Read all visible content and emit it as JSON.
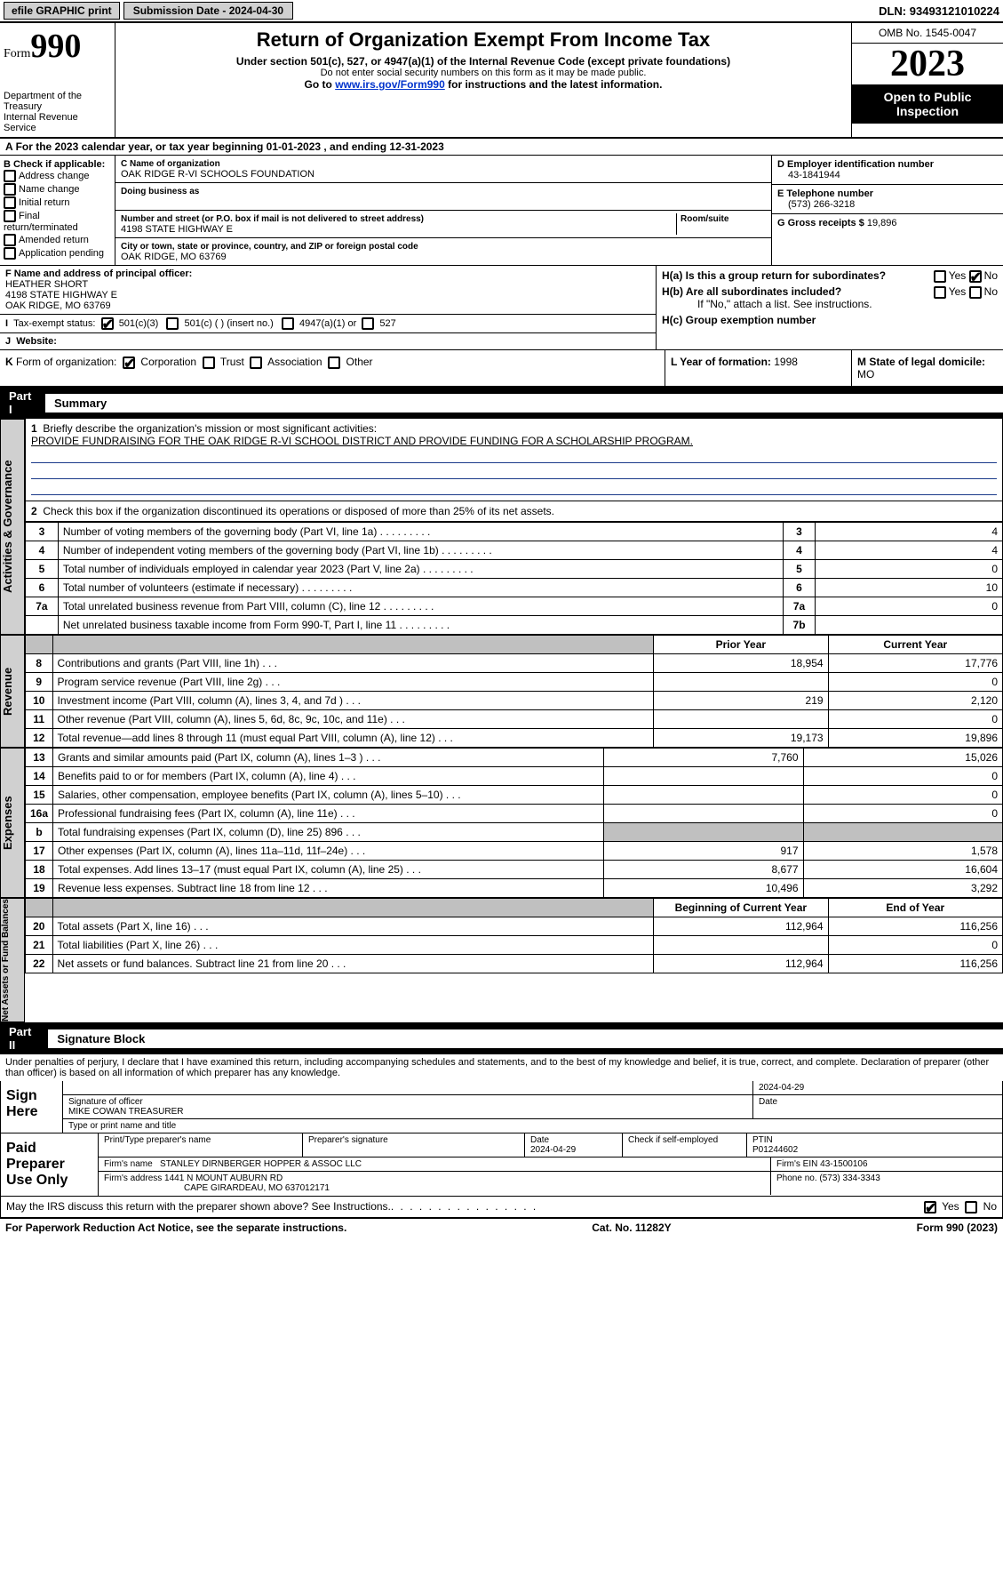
{
  "topbar": {
    "efile": "efile GRAPHIC print",
    "submission_label": "Submission Date - ",
    "submission_date": "2024-04-30",
    "dln_label": "DLN: ",
    "dln": "93493121010224"
  },
  "header": {
    "form_word": "Form",
    "form_number": "990",
    "dept": "Department of the Treasury\nInternal Revenue Service",
    "title": "Return of Organization Exempt From Income Tax",
    "sub1": "Under section 501(c), 527, or 4947(a)(1) of the Internal Revenue Code (except private foundations)",
    "sub2": "Do not enter social security numbers on this form as it may be made public.",
    "sub3_pre": "Go to ",
    "sub3_link": "www.irs.gov/Form990",
    "sub3_post": " for instructions and the latest information.",
    "omb": "OMB No. 1545-0047",
    "year": "2023",
    "open_pub": "Open to Public Inspection"
  },
  "line_A": "For the 2023 calendar year, or tax year beginning 01-01-2023    , and ending 12-31-2023",
  "B": {
    "label": "B Check if applicable:",
    "items": [
      "Address change",
      "Name change",
      "Initial return",
      "Final return/terminated",
      "Amended return",
      "Application pending"
    ]
  },
  "C": {
    "name_lab": "C Name of organization",
    "name": "OAK RIDGE R-VI SCHOOLS FOUNDATION",
    "dba_lab": "Doing business as",
    "dba": "",
    "street_lab": "Number and street (or P.O. box if mail is not delivered to street address)",
    "street": "4198 STATE HIGHWAY E",
    "room_lab": "Room/suite",
    "city_lab": "City or town, state or province, country, and ZIP or foreign postal code",
    "city": "OAK RIDGE, MO  63769"
  },
  "D": {
    "lab": "D Employer identification number",
    "val": "43-1841944"
  },
  "E": {
    "lab": "E Telephone number",
    "val": "(573) 266-3218"
  },
  "G": {
    "lab": "G Gross receipts $ ",
    "val": "19,896"
  },
  "F": {
    "lab": "F  Name and address of principal officer:",
    "name": "HEATHER SHORT",
    "addr1": "4198 STATE HIGHWAY E",
    "addr2": "OAK RIDGE, MO  63769"
  },
  "H": {
    "a": "H(a)  Is this a group return for subordinates?",
    "b": "H(b)  Are all subordinates included?",
    "b_note": "If \"No,\" attach a list. See instructions.",
    "c": "H(c)  Group exemption number",
    "yes": "Yes",
    "no": "No"
  },
  "I": {
    "lab": "Tax-exempt status:",
    "opts": [
      "501(c)(3)",
      "501(c) (  ) (insert no.)",
      "4947(a)(1) or",
      "527"
    ]
  },
  "J": {
    "lab": "Website:",
    "val": ""
  },
  "K": {
    "lab": "Form of organization:",
    "opts": [
      "Corporation",
      "Trust",
      "Association",
      "Other"
    ]
  },
  "L": {
    "lab": "L Year of formation: ",
    "val": "1998"
  },
  "M": {
    "lab": "M State of legal domicile:",
    "val": "MO"
  },
  "partI": {
    "num": "Part I",
    "title": "Summary"
  },
  "summary": {
    "q1_lab": "Briefly describe the organization's mission or most significant activities:",
    "q1_val": "PROVIDE FUNDRAISING FOR THE OAK RIDGE R-VI SCHOOL DISTRICT AND PROVIDE FUNDING FOR A SCHOLARSHIP PROGRAM.",
    "q2": "Check this box       if the organization discontinued its operations or disposed of more than 25% of its net assets.",
    "rows_gov": [
      {
        "n": "3",
        "lab": "Number of voting members of the governing body (Part VI, line 1a)",
        "box": "3",
        "val": "4"
      },
      {
        "n": "4",
        "lab": "Number of independent voting members of the governing body (Part VI, line 1b)",
        "box": "4",
        "val": "4"
      },
      {
        "n": "5",
        "lab": "Total number of individuals employed in calendar year 2023 (Part V, line 2a)",
        "box": "5",
        "val": "0"
      },
      {
        "n": "6",
        "lab": "Total number of volunteers (estimate if necessary)",
        "box": "6",
        "val": "10"
      },
      {
        "n": "7a",
        "lab": "Total unrelated business revenue from Part VIII, column (C), line 12",
        "box": "7a",
        "val": "0"
      },
      {
        "n": "",
        "lab": "Net unrelated business taxable income from Form 990-T, Part I, line 11",
        "box": "7b",
        "val": ""
      }
    ],
    "col_prior": "Prior Year",
    "col_curr": "Current Year",
    "rows_rev": [
      {
        "n": "8",
        "lab": "Contributions and grants (Part VIII, line 1h)",
        "p": "18,954",
        "c": "17,776"
      },
      {
        "n": "9",
        "lab": "Program service revenue (Part VIII, line 2g)",
        "p": "",
        "c": "0"
      },
      {
        "n": "10",
        "lab": "Investment income (Part VIII, column (A), lines 3, 4, and 7d )",
        "p": "219",
        "c": "2,120"
      },
      {
        "n": "11",
        "lab": "Other revenue (Part VIII, column (A), lines 5, 6d, 8c, 9c, 10c, and 11e)",
        "p": "",
        "c": "0"
      },
      {
        "n": "12",
        "lab": "Total revenue—add lines 8 through 11 (must equal Part VIII, column (A), line 12)",
        "p": "19,173",
        "c": "19,896"
      }
    ],
    "rows_exp": [
      {
        "n": "13",
        "lab": "Grants and similar amounts paid (Part IX, column (A), lines 1–3 )",
        "p": "7,760",
        "c": "15,026"
      },
      {
        "n": "14",
        "lab": "Benefits paid to or for members (Part IX, column (A), line 4)",
        "p": "",
        "c": "0"
      },
      {
        "n": "15",
        "lab": "Salaries, other compensation, employee benefits (Part IX, column (A), lines 5–10)",
        "p": "",
        "c": "0"
      },
      {
        "n": "16a",
        "lab": "Professional fundraising fees (Part IX, column (A), line 11e)",
        "p": "",
        "c": "0"
      },
      {
        "n": "b",
        "lab": "Total fundraising expenses (Part IX, column (D), line 25) 896",
        "p": "shade",
        "c": "shade"
      },
      {
        "n": "17",
        "lab": "Other expenses (Part IX, column (A), lines 11a–11d, 11f–24e)",
        "p": "917",
        "c": "1,578"
      },
      {
        "n": "18",
        "lab": "Total expenses. Add lines 13–17 (must equal Part IX, column (A), line 25)",
        "p": "8,677",
        "c": "16,604"
      },
      {
        "n": "19",
        "lab": "Revenue less expenses. Subtract line 18 from line 12",
        "p": "10,496",
        "c": "3,292"
      }
    ],
    "col_begin": "Beginning of Current Year",
    "col_end": "End of Year",
    "rows_net": [
      {
        "n": "20",
        "lab": "Total assets (Part X, line 16)",
        "p": "112,964",
        "c": "116,256"
      },
      {
        "n": "21",
        "lab": "Total liabilities (Part X, line 26)",
        "p": "",
        "c": "0"
      },
      {
        "n": "22",
        "lab": "Net assets or fund balances. Subtract line 21 from line 20",
        "p": "112,964",
        "c": "116,256"
      }
    ],
    "side_gov": "Activities & Governance",
    "side_rev": "Revenue",
    "side_exp": "Expenses",
    "side_net": "Net Assets or Fund Balances"
  },
  "partII": {
    "num": "Part II",
    "title": "Signature Block"
  },
  "sig": {
    "penalty": "Under penalties of perjury, I declare that I have examined this return, including accompanying schedules and statements, and to the best of my knowledge and belief, it is true, correct, and complete. Declaration of preparer (other than officer) is based on all information of which preparer has any knowledge.",
    "sign_here": "Sign Here",
    "sig_officer_lab": "Signature of officer",
    "sig_officer": "MIKE COWAN TREASURER",
    "type_name_lab": "Type or print name and title",
    "date_lab": "Date",
    "date": "2024-04-29",
    "paid": "Paid Preparer Use Only",
    "prep_name_lab": "Print/Type preparer's name",
    "prep_sig_lab": "Preparer's signature",
    "prep_date_lab": "Date",
    "prep_date": "2024-04-29",
    "self_emp": "Check       if self-employed",
    "ptin_lab": "PTIN",
    "ptin": "P01244602",
    "firm_name_lab": "Firm's name ",
    "firm_name": "STANLEY DIRNBERGER HOPPER & ASSOC LLC",
    "firm_ein_lab": "Firm's EIN ",
    "firm_ein": "43-1500106",
    "firm_addr_lab": "Firm's address ",
    "firm_addr1": "1441 N MOUNT AUBURN RD",
    "firm_addr2": "CAPE GIRARDEAU, MO  637012171",
    "firm_phone_lab": "Phone no. ",
    "firm_phone": "(573) 334-3343",
    "may_irs": "May the IRS discuss this return with the preparer shown above? See Instructions."
  },
  "footer": {
    "left": "For Paperwork Reduction Act Notice, see the separate instructions.",
    "mid": "Cat. No. 11282Y",
    "right_pre": "Form ",
    "right_form": "990",
    "right_post": " (2023)"
  },
  "colors": {
    "text": "#000000",
    "bg": "#ffffff",
    "link": "#0033cc",
    "shade": "#c0c0c0",
    "rule": "#1a3a8a"
  }
}
